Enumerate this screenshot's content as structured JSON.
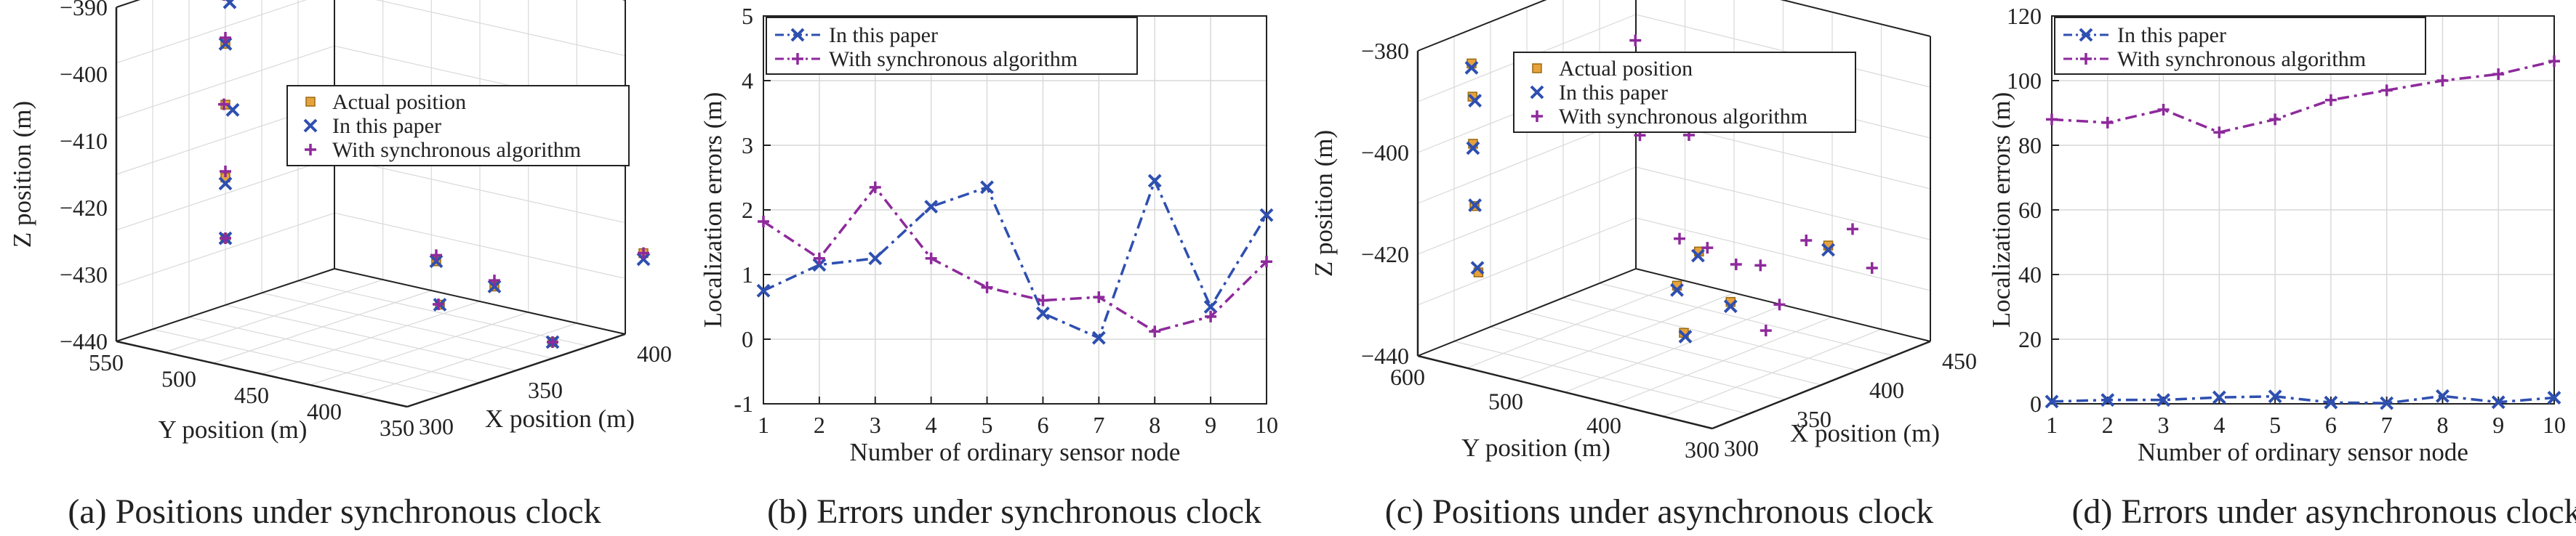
{
  "colors": {
    "paper": "#2e4fb0",
    "sync": "#8e2a9c",
    "actual": "#e6a23c",
    "actual_edge": "#9a6a10",
    "grid": "#d9d9d9",
    "axis": "#222222"
  },
  "chart_data": [
    {
      "id": "a",
      "type": "scatter3d",
      "caption": "(a) Positions under synchronous clock",
      "xlabel": "X position (m)",
      "ylabel": "Y position (m)",
      "zlabel": "Z position (m)",
      "x_ticks": [
        "300",
        "350",
        "400"
      ],
      "y_ticks": [
        "350",
        "400",
        "450",
        "500",
        "550"
      ],
      "z_ticks": [
        "−440",
        "−430",
        "−420",
        "−410",
        "−400",
        "−390"
      ],
      "xlim": [
        300,
        400
      ],
      "ylim": [
        350,
        550
      ],
      "zlim": [
        -440,
        -385
      ],
      "legend": [
        "Actual position",
        "In this paper",
        "With synchronous algorithm"
      ],
      "series": [
        {
          "name": "Actual position",
          "marker": "square",
          "points": [
            [
              330,
              520,
              -385
            ],
            [
              330,
              520,
              -393
            ],
            [
              330,
              520,
              -403
            ],
            [
              330,
              520,
              -415
            ],
            [
              330,
              520,
              -425
            ],
            [
              360,
              420,
              -427
            ],
            [
              380,
              370,
              -440
            ],
            [
              345,
              395,
              -431
            ],
            [
              360,
              380,
              -429
            ],
            [
              395,
              330,
              -425
            ]
          ]
        },
        {
          "name": "In this paper",
          "marker": "x",
          "points": [
            [
              330,
              517,
              -386
            ],
            [
              330,
              520,
              -393
            ],
            [
              332,
              518,
              -404
            ],
            [
              330,
              520,
              -416
            ],
            [
              330,
              520,
              -425
            ],
            [
              360,
              420,
              -427
            ],
            [
              380,
              370,
              -440
            ],
            [
              345,
              395,
              -431
            ],
            [
              360,
              380,
              -429
            ],
            [
              395,
              330,
              -426
            ]
          ]
        },
        {
          "name": "With synchronous algorithm",
          "marker": "plus",
          "points": [
            [
              330,
              521,
              -385
            ],
            [
              330,
              520,
              -392
            ],
            [
              330,
              521,
              -403
            ],
            [
              330,
              520,
              -414
            ],
            [
              330,
              520,
              -425
            ],
            [
              360,
              420,
              -426
            ],
            [
              380,
              370,
              -440
            ],
            [
              345,
              396,
              -431
            ],
            [
              360,
              380,
              -428
            ],
            [
              395,
              330,
              -425
            ]
          ]
        }
      ]
    },
    {
      "id": "b",
      "type": "line",
      "caption": "(b) Errors under synchronous clock",
      "xlabel": "Number of ordinary sensor node",
      "ylabel": "Localization errors (m)",
      "x": [
        1,
        2,
        3,
        4,
        5,
        6,
        7,
        8,
        9,
        10
      ],
      "xlim": [
        1,
        10
      ],
      "ylim": [
        -1,
        5
      ],
      "y_ticks": [
        -1,
        0,
        1,
        2,
        3,
        4,
        5
      ],
      "legend": [
        "In this paper",
        "With synchronous algorithm"
      ],
      "series": [
        {
          "name": "In this paper",
          "marker": "x",
          "values": [
            0.75,
            1.15,
            1.25,
            2.05,
            2.35,
            0.4,
            0.02,
            2.45,
            0.5,
            1.92
          ]
        },
        {
          "name": "With synchronous algorithm",
          "marker": "plus",
          "values": [
            1.82,
            1.25,
            2.35,
            1.25,
            0.8,
            0.6,
            0.65,
            0.12,
            0.35,
            1.2
          ]
        }
      ]
    },
    {
      "id": "c",
      "type": "scatter3d",
      "caption": "(c) Positions under asynchronous clock",
      "xlabel": "X position (m)",
      "ylabel": "Y position (m)",
      "zlabel": "Z position (m)",
      "x_ticks": [
        "300",
        "350",
        "400",
        "450"
      ],
      "y_ticks": [
        "300",
        "400",
        "500",
        "600"
      ],
      "z_ticks": [
        "−440",
        "−420",
        "−400",
        "−380"
      ],
      "xlim": [
        300,
        450
      ],
      "ylim": [
        300,
        600
      ],
      "zlim": [
        -440,
        -370
      ],
      "legend": [
        "Actual position",
        "In this paper",
        "With synchronous algorithm"
      ],
      "series": [
        {
          "name": "Actual position",
          "marker": "square",
          "points": [
            [
              310,
              560,
              -372
            ],
            [
              312,
              562,
              -380
            ],
            [
              313,
              563,
              -391
            ],
            [
              312,
              560,
              -405
            ],
            [
              312,
              556,
              -420
            ],
            [
              350,
              410,
              -420
            ],
            [
              348,
              400,
              -430
            ],
            [
              355,
              395,
              -412
            ],
            [
              370,
              385,
              -425
            ],
            [
              400,
              330,
              -413
            ]
          ]
        },
        {
          "name": "In this paper",
          "marker": "x",
          "points": [
            [
              310,
              560,
              -373
            ],
            [
              313,
              561,
              -381
            ],
            [
              313,
              563,
              -392
            ],
            [
              313,
              561,
              -405
            ],
            [
              312,
              557,
              -419
            ],
            [
              350,
              410,
              -421
            ],
            [
              349,
              400,
              -431
            ],
            [
              355,
              396,
              -413
            ],
            [
              370,
              385,
              -426
            ],
            [
              400,
              330,
              -414
            ]
          ]
        },
        {
          "name": "With synchronous algorithm",
          "marker": "plus",
          "points": [
            [
              340,
              470,
              -355
            ],
            [
              345,
              445,
              -365
            ],
            [
              338,
              430,
              -385
            ],
            [
              365,
              420,
              -388
            ],
            [
              345,
              400,
              -408
            ],
            [
              352,
              382,
              -410
            ],
            [
              365,
              372,
              -415
            ],
            [
              375,
              362,
              -416
            ],
            [
              372,
              352,
              -430
            ],
            [
              410,
              320,
              -410
            ],
            [
              395,
              345,
              -412
            ],
            [
              380,
              350,
              -425
            ],
            [
              420,
              315,
              -420
            ]
          ]
        }
      ]
    },
    {
      "id": "d",
      "type": "line",
      "caption": "(d) Errors under asynchronous clock",
      "xlabel": "Number of ordinary sensor node",
      "ylabel": "Localization errors (m)",
      "x": [
        1,
        2,
        3,
        4,
        5,
        6,
        7,
        8,
        9,
        10
      ],
      "xlim": [
        1,
        10
      ],
      "ylim": [
        0,
        120
      ],
      "y_ticks": [
        0,
        20,
        40,
        60,
        80,
        100,
        120
      ],
      "legend": [
        "In this paper",
        "With synchronous algorithm"
      ],
      "series": [
        {
          "name": "In this paper",
          "marker": "x",
          "values": [
            0.7,
            1.2,
            1.2,
            2.0,
            2.3,
            0.4,
            0.2,
            2.4,
            0.5,
            1.9
          ]
        },
        {
          "name": "With synchronous algorithm",
          "marker": "plus",
          "values": [
            88,
            87,
            91,
            84,
            88,
            94,
            97,
            100,
            102,
            106
          ]
        }
      ]
    }
  ]
}
